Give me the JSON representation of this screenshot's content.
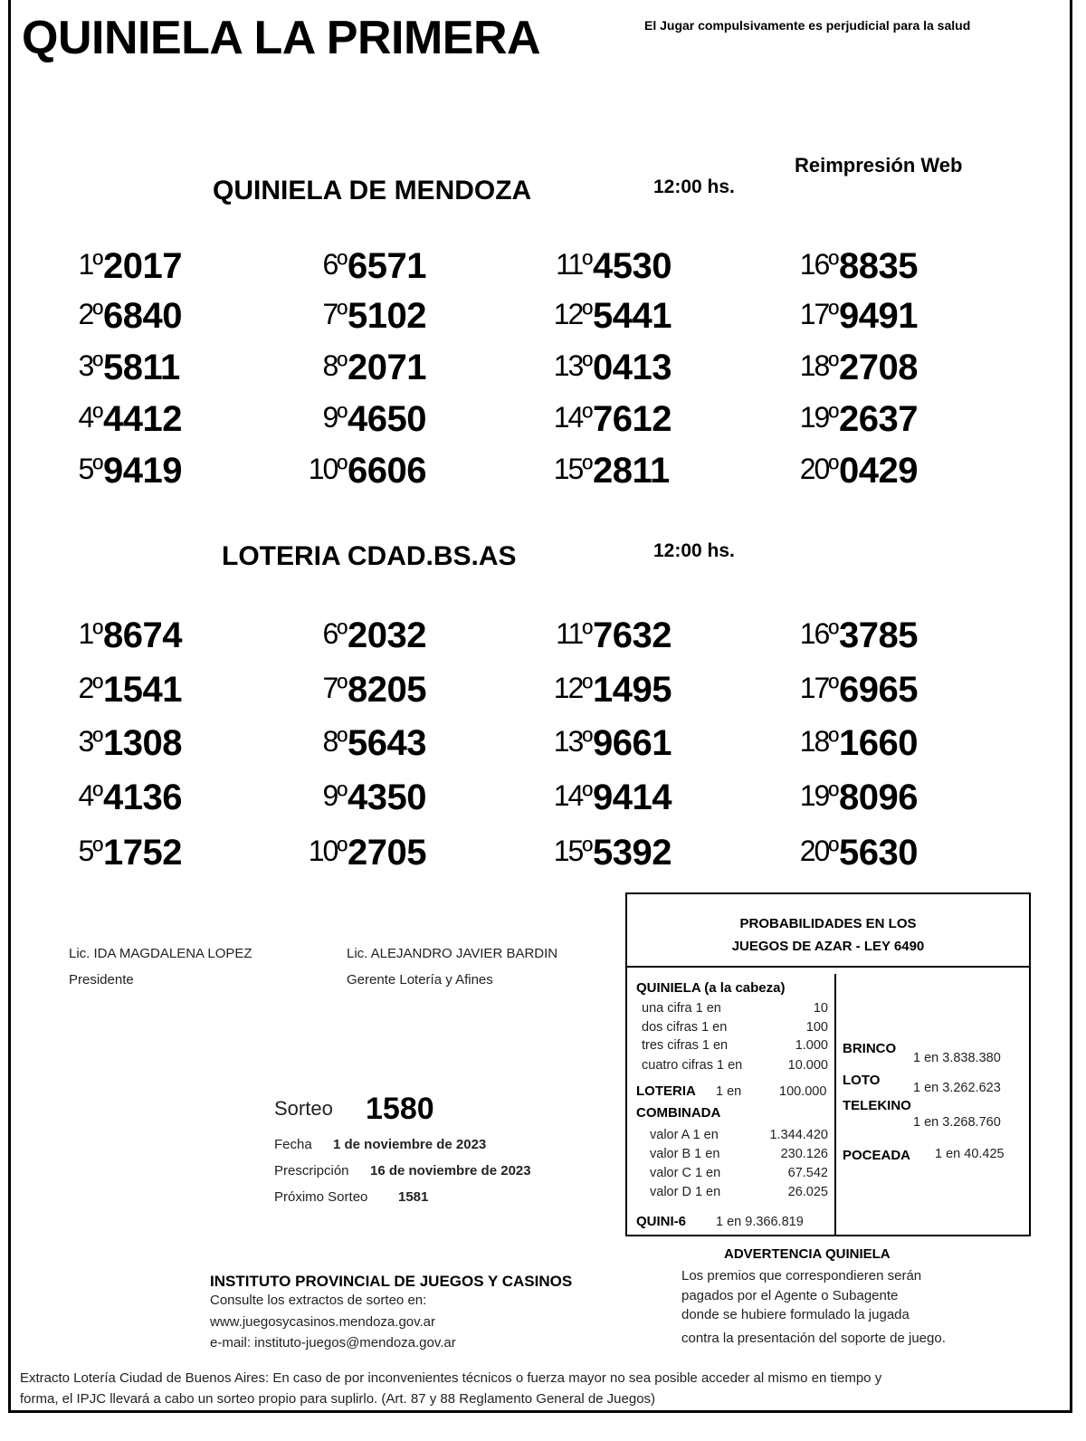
{
  "header": {
    "title": "QUINIELA LA PRIMERA",
    "warning": "El Jugar compulsivamente es perjudicial para la salud",
    "reprint": "Reimpresión Web"
  },
  "sections": [
    {
      "title": "QUINIELA  DE MENDOZA",
      "time": "12:00 hs.",
      "results": [
        {
          "pos": "1º",
          "num": "2017"
        },
        {
          "pos": "2º",
          "num": "6840"
        },
        {
          "pos": "3º",
          "num": "5811"
        },
        {
          "pos": "4º",
          "num": "4412"
        },
        {
          "pos": "5º",
          "num": "9419"
        },
        {
          "pos": "6º",
          "num": "6571"
        },
        {
          "pos": "7º",
          "num": "5102"
        },
        {
          "pos": "8º",
          "num": "2071"
        },
        {
          "pos": "9º",
          "num": "4650"
        },
        {
          "pos": "10º",
          "num": "6606"
        },
        {
          "pos": "11º",
          "num": "4530"
        },
        {
          "pos": "12º",
          "num": "5441"
        },
        {
          "pos": "13º",
          "num": "0413"
        },
        {
          "pos": "14º",
          "num": "7612"
        },
        {
          "pos": "15º",
          "num": "2811"
        },
        {
          "pos": "16º",
          "num": "8835"
        },
        {
          "pos": "17º",
          "num": "9491"
        },
        {
          "pos": "18º",
          "num": "2708"
        },
        {
          "pos": "19º",
          "num": "2637"
        },
        {
          "pos": "20º",
          "num": "0429"
        }
      ]
    },
    {
      "title": "LOTERIA CDAD.BS.AS",
      "time": "12:00 hs.",
      "results": [
        {
          "pos": "1º",
          "num": "8674"
        },
        {
          "pos": "2º",
          "num": "1541"
        },
        {
          "pos": "3º",
          "num": "1308"
        },
        {
          "pos": "4º",
          "num": "4136"
        },
        {
          "pos": "5º",
          "num": "1752"
        },
        {
          "pos": "6º",
          "num": "2032"
        },
        {
          "pos": "7º",
          "num": "8205"
        },
        {
          "pos": "8º",
          "num": "5643"
        },
        {
          "pos": "9º",
          "num": "4350"
        },
        {
          "pos": "10º",
          "num": "2705"
        },
        {
          "pos": "11º",
          "num": "7632"
        },
        {
          "pos": "12º",
          "num": "1495"
        },
        {
          "pos": "13º",
          "num": "9661"
        },
        {
          "pos": "14º",
          "num": "9414"
        },
        {
          "pos": "15º",
          "num": "5392"
        },
        {
          "pos": "16º",
          "num": "3785"
        },
        {
          "pos": "17º",
          "num": "6965"
        },
        {
          "pos": "18º",
          "num": "1660"
        },
        {
          "pos": "19º",
          "num": "8096"
        },
        {
          "pos": "20º",
          "num": "5630"
        }
      ]
    }
  ],
  "signatures": [
    {
      "name": "Lic. IDA MAGDALENA LOPEZ",
      "role": "Presidente"
    },
    {
      "name": "Lic. ALEJANDRO JAVIER BARDIN",
      "role": "Gerente Lotería y Afines"
    }
  ],
  "draw": {
    "label": "Sorteo",
    "number": "1580",
    "date_label": "Fecha",
    "date": "1 de noviembre de 2023",
    "prescription_label": "Prescripción",
    "prescription": "16 de noviembre de 2023",
    "next_label": "Próximo Sorteo",
    "next": "1581"
  },
  "probabilities": {
    "title1": "PROBABILIDADES EN LOS",
    "title2": "JUEGOS DE AZAR - LEY 6490",
    "quiniela": "QUINIELA (a la cabeza)",
    "rows": [
      {
        "label": "una cifra  1 en",
        "value": "10"
      },
      {
        "label": "dos cifras 1 en",
        "value": "100"
      },
      {
        "label": "tres cifras 1 en",
        "value": "1.000"
      },
      {
        "label": "cuatro cifras 1 en",
        "value": "10.000"
      }
    ],
    "loteria": "LOTERIA",
    "loteria_en": "1 en",
    "loteria_value": "100.000",
    "combinada": "COMBINADA",
    "combinada_rows": [
      {
        "label": "valor A 1 en",
        "value": "1.344.420"
      },
      {
        "label": "valor B 1 en",
        "value": "230.126"
      },
      {
        "label": "valor C 1 en",
        "value": "67.542"
      },
      {
        "label": "valor D 1 en",
        "value": "26.025"
      }
    ],
    "quini6": "QUINI-6",
    "quini6_value": "1 en  9.366.819",
    "brinco": "BRINCO",
    "brinco_value": "1 en 3.838.380",
    "loto": "LOTO",
    "loto_value": "1 en 3.262.623",
    "telekino": "TELEKINO",
    "telekino_value": "1 en 3.268.760",
    "poceada": "POCEADA",
    "poceada_value": "1 en 40.425"
  },
  "advertencia": {
    "title": "ADVERTENCIA QUINIELA",
    "lines": [
      "Los premios que correspondieren serán",
      "pagados por el Agente o Subagente",
      "donde se hubiere formulado la jugada",
      "contra la presentación del soporte de juego."
    ]
  },
  "institute": {
    "name": "INSTITUTO PROVINCIAL DE JUEGOS Y CASINOS",
    "line1": "Consulte los extractos de sorteo en:",
    "web": "www.juegosycasinos.mendoza.gov.ar",
    "email": "e-mail:  instituto-juegos@mendoza.gov.ar"
  },
  "footer": {
    "line1": "Extracto Lotería Ciudad de Buenos Aires: En caso de por inconvenientes técnicos o fuerza mayor no sea posible acceder al mismo en tiempo y",
    "line2": "forma, el IPJC llevará a cabo un sorteo propio para suplirlo. (Art. 87 y 88 Reglamento General de Juegos)"
  }
}
